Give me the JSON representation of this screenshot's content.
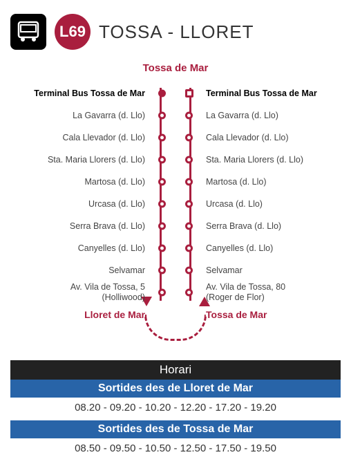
{
  "colors": {
    "brand": "#a91e3e",
    "blue": "#2864a8",
    "black": "#000000",
    "dark": "#222222"
  },
  "header": {
    "line_code": "L69",
    "route_title": "TOSSA - LLORET"
  },
  "origin": "Tossa de Mar",
  "routes": {
    "outbound": {
      "destination": "Lloret de Mar",
      "stops": [
        {
          "label": "Terminal Bus Tossa de Mar",
          "bold": true,
          "filled": true
        },
        {
          "label": "La Gavarra (d. Llo)"
        },
        {
          "label": "Cala Llevador (d. Llo)"
        },
        {
          "label": "Sta. Maria Llorers (d. Llo)"
        },
        {
          "label": "Martosa (d. Llo)"
        },
        {
          "label": "Urcasa (d. Llo)"
        },
        {
          "label": "Serra Brava (d. Llo)"
        },
        {
          "label": "Canyelles (d. Llo)"
        },
        {
          "label": "Selvamar"
        },
        {
          "label": "Av. Vila de Tossa, 5",
          "label2": "(Holliwood)"
        }
      ]
    },
    "return": {
      "destination": "Tossa de Mar",
      "stops": [
        {
          "label": "Terminal Bus Tossa de Mar",
          "bold": true,
          "square": true
        },
        {
          "label": "La Gavarra (d. Llo)"
        },
        {
          "label": "Cala Llevador (d. Llo)"
        },
        {
          "label": "Sta. Maria Llorers (d. Llo)"
        },
        {
          "label": "Martosa (d. Llo)"
        },
        {
          "label": "Urcasa (d. Llo)"
        },
        {
          "label": "Serra Brava (d. Llo)"
        },
        {
          "label": "Canyelles (d. Llo)"
        },
        {
          "label": "Selvamar"
        },
        {
          "label": "Av. Vila de Tossa, 80",
          "label2": "(Roger de Flor)"
        }
      ]
    }
  },
  "schedule": {
    "title": "Horari",
    "sections": [
      {
        "heading": "Sortides des de Lloret de Mar",
        "times": "08.20 - 09.20 - 10.20 - 12.20 - 17.20 - 19.20"
      },
      {
        "heading": "Sortides des de Tossa de Mar",
        "times": "08.50 - 09.50 - 10.50 - 12.50 - 17.50 - 19.50"
      }
    ]
  }
}
